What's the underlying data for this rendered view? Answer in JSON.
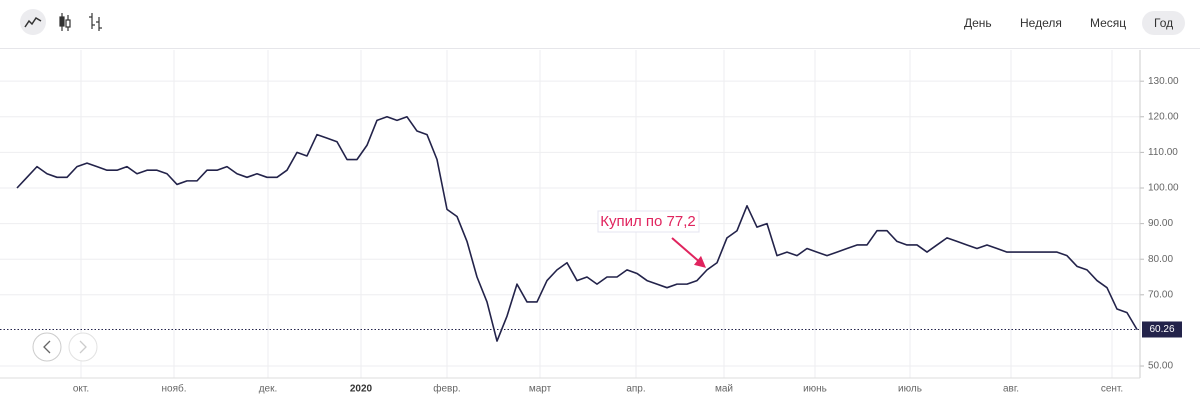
{
  "controls": {
    "periods": [
      "День",
      "Неделя",
      "Месяц",
      "Год"
    ],
    "selected": 3
  },
  "chart_data": {
    "type": "line",
    "series": [
      {
        "color": "#23234a",
        "values": [
          100,
          103,
          106,
          104,
          103,
          103,
          106,
          107,
          106,
          105,
          105,
          106,
          104,
          105,
          105,
          104,
          101,
          102,
          102,
          105,
          105,
          106,
          104,
          103,
          104,
          103,
          103,
          105,
          110,
          109,
          115,
          114,
          113,
          108,
          108,
          112,
          119,
          120,
          119,
          120,
          116,
          115,
          108,
          94,
          92,
          85,
          75,
          68,
          57,
          64,
          73,
          68,
          68,
          74,
          77,
          79,
          74,
          75,
          73,
          75,
          75,
          77,
          76,
          74,
          73,
          72,
          73,
          73,
          74,
          77,
          79,
          86,
          88,
          95,
          89,
          90,
          81,
          82,
          81,
          83,
          82,
          81,
          82,
          83,
          84,
          84,
          88,
          88,
          85,
          84,
          84,
          82,
          84,
          86,
          85,
          84,
          83,
          84,
          83,
          82,
          82,
          82,
          82,
          82,
          82,
          81,
          78,
          77,
          74,
          72,
          66,
          65,
          60.26
        ]
      }
    ],
    "xlim": [
      0,
      112
    ],
    "xticks": [
      {
        "value": 6.4,
        "label": "окт."
      },
      {
        "value": 15.7,
        "label": "нояб."
      },
      {
        "value": 25.1,
        "label": "дек."
      },
      {
        "value": 34.4,
        "label": "2020"
      },
      {
        "value": 43,
        "label": "февр."
      },
      {
        "value": 52.3,
        "label": "март"
      },
      {
        "value": 61.9,
        "label": "апр."
      },
      {
        "value": 70.7,
        "label": "май"
      },
      {
        "value": 79.8,
        "label": "июнь"
      },
      {
        "value": 89.3,
        "label": "июль"
      },
      {
        "value": 99.4,
        "label": "авг."
      },
      {
        "value": 109.5,
        "label": "сент."
      }
    ],
    "ylim": [
      47,
      138
    ],
    "yticks": [
      {
        "value": 50,
        "label": "50.00"
      },
      {
        "value": 70,
        "label": "70.00"
      },
      {
        "value": 80,
        "label": "80.00"
      },
      {
        "value": 90,
        "label": "90.00"
      },
      {
        "value": 100,
        "label": "100.00"
      },
      {
        "value": 110,
        "label": "110.00"
      },
      {
        "value": 120,
        "label": "120.00"
      },
      {
        "value": 130,
        "label": "130.00"
      }
    ],
    "grid": true,
    "annotation": "Купил по 77,2"
  }
}
